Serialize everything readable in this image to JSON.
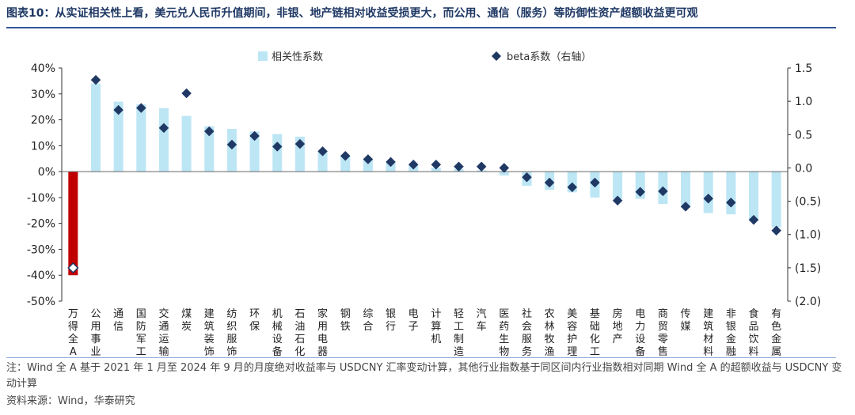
{
  "figure": {
    "title": "图表10：从实证相关性上看，美元兑人民币升值期间，非银、地产链相对收益受损更大，而公用、通信（服务）等防御性资产超额收益更可观",
    "note": "注：Wind 全 A 基于 2021 年 1 月至 2024 年 9 月的月度绝对收益率与 USDCNY 汇率变动计算，其他行业指数基于同区间内行业指数相对同期 Wind 全 A 的超额收益与 USDCNY 变动计算",
    "source": "资料来源：Wind，华泰研究"
  },
  "chart_data": {
    "type": "bar",
    "categories": [
      "万得全A",
      "公用事业",
      "通信",
      "国防军工",
      "交通运输",
      "煤炭",
      "建筑装饰",
      "纺织服饰",
      "环保",
      "机械设备",
      "石油石化",
      "家用电器",
      "钢铁",
      "综合",
      "银行",
      "电子",
      "计算机",
      "轻工制造",
      "汽车",
      "医药生物",
      "社会服务",
      "农林牧渔",
      "美容护理",
      "基础化工",
      "房地产",
      "电力设备",
      "商贸零售",
      "传媒",
      "建筑材料",
      "非银金融",
      "食品饮料",
      "有色金属"
    ],
    "series": [
      {
        "name": "相关性系数",
        "axis": "left",
        "kind": "bar",
        "color": "#bde6f5",
        "highlight_first_color": "#c00000",
        "values": [
          -40,
          34,
          27,
          26,
          24.5,
          21.5,
          17.5,
          16.5,
          15.5,
          14.5,
          13.5,
          7.5,
          6.5,
          5,
          3.5,
          2.5,
          1.5,
          1,
          0.5,
          -1.5,
          -5.5,
          -7,
          -8,
          -10,
          -10.5,
          -10.5,
          -12.5,
          -14,
          -16,
          -16.5,
          -19,
          -21.5
        ]
      },
      {
        "name": "beta系数（右轴）",
        "axis": "right",
        "kind": "diamond",
        "color": "#1f3864",
        "values": [
          -1.5,
          1.32,
          0.87,
          0.9,
          0.6,
          1.12,
          0.55,
          0.35,
          0.48,
          0.32,
          0.36,
          0.25,
          0.18,
          0.13,
          0.09,
          0.05,
          0.05,
          0.02,
          0.02,
          0.0,
          -0.14,
          -0.22,
          -0.29,
          -0.22,
          -0.49,
          -0.36,
          -0.35,
          -0.58,
          -0.46,
          -0.52,
          -0.78,
          -0.94
        ]
      }
    ],
    "left_axis": {
      "min": -50,
      "max": 40,
      "ticks": [
        40,
        30,
        20,
        10,
        0,
        -10,
        -20,
        -30,
        -40,
        -50
      ],
      "tick_labels": [
        "40%",
        "30%",
        "20%",
        "10%",
        "0%",
        "-10%",
        "-20%",
        "-30%",
        "-40%",
        "-50%"
      ]
    },
    "right_axis": {
      "min": -2.0,
      "max": 1.5,
      "ticks": [
        1.5,
        1.0,
        0.5,
        0.0,
        -0.5,
        -1.0,
        -1.5,
        -2.0
      ],
      "tick_labels": [
        "1.5",
        "1.0",
        "0.5",
        "0.0",
        "(0.5)",
        "(1.0)",
        "(1.5)",
        "(2.0)"
      ]
    },
    "legend": {
      "placement": "top",
      "bar_label": "相关性系数",
      "marker_label": "beta系数（右轴）"
    },
    "grid": false
  }
}
